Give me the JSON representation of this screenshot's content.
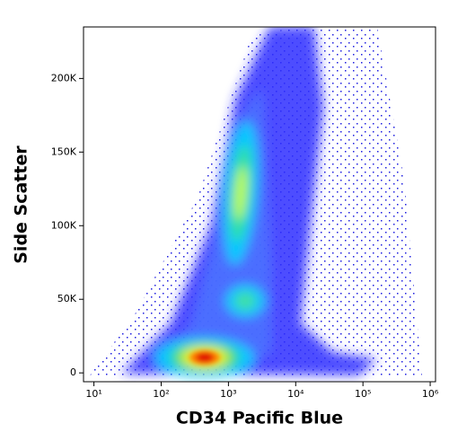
{
  "chart_data": {
    "type": "density",
    "x_label": "CD34 Pacific Blue",
    "y_label": "Side Scatter",
    "x_scale": "log",
    "xlim": [
      7,
      1200000
    ],
    "xticks": [
      {
        "value": 10,
        "label": "10¹"
      },
      {
        "value": 100,
        "label": "10²"
      },
      {
        "value": 1000,
        "label": "10³"
      },
      {
        "value": 10000,
        "label": "10⁴"
      },
      {
        "value": 100000,
        "label": "10⁵"
      },
      {
        "value": 1000000,
        "label": "10⁶"
      }
    ],
    "ylim": [
      -6000,
      235000
    ],
    "yticks": [
      0,
      {
        "value": 50000,
        "label": "50K"
      },
      {
        "value": 100000,
        "label": "100K"
      },
      {
        "value": 150000,
        "label": "150K"
      },
      {
        "value": 200000,
        "label": "200K"
      }
    ]
  }
}
